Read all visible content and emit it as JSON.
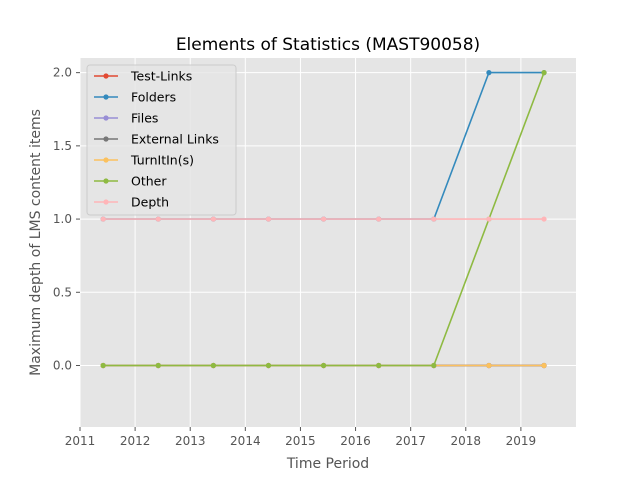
{
  "chart_data": {
    "type": "line",
    "title": "Elements of Statistics (MAST90058)",
    "xlabel": "Time Period",
    "ylabel": "Maximum depth of LMS content items",
    "xlim": [
      2011,
      2020
    ],
    "ylim": [
      -0.42,
      2.1
    ],
    "xticks": [
      "2011",
      "2012",
      "2013",
      "2014",
      "2015",
      "2016",
      "2017",
      "2018",
      "2019"
    ],
    "yticks": [
      "0.0",
      "0.5",
      "1.0",
      "1.5",
      "2.0"
    ],
    "grid": true,
    "legend_position": "upper left",
    "x": [
      2011.42,
      2012.42,
      2013.42,
      2014.42,
      2015.42,
      2016.42,
      2017.42,
      2018.42,
      2019.42
    ],
    "series": [
      {
        "name": "Test-Links",
        "color": "#E24A33",
        "values": [
          0,
          0,
          0,
          0,
          0,
          0,
          0,
          0,
          0
        ]
      },
      {
        "name": "Folders",
        "color": "#348ABD",
        "values": [
          1,
          1,
          1,
          1,
          1,
          1,
          1,
          2,
          2
        ]
      },
      {
        "name": "Files",
        "color": "#988ED5",
        "values": [
          0,
          0,
          0,
          0,
          0,
          0,
          0,
          0,
          0
        ]
      },
      {
        "name": "External Links",
        "color": "#777777",
        "values": [
          0,
          0,
          0,
          0,
          0,
          0,
          0,
          0,
          0
        ]
      },
      {
        "name": "TurnItIn(s)",
        "color": "#FBC15E",
        "values": [
          0,
          0,
          0,
          0,
          0,
          0,
          0,
          0,
          0
        ]
      },
      {
        "name": "Other",
        "color": "#8EBA42",
        "values": [
          0,
          0,
          0,
          0,
          0,
          0,
          0,
          1,
          2
        ]
      },
      {
        "name": "Depth",
        "color": "#FFB5B8",
        "values": [
          1,
          1,
          1,
          1,
          1,
          1,
          1,
          1,
          1
        ]
      }
    ]
  }
}
